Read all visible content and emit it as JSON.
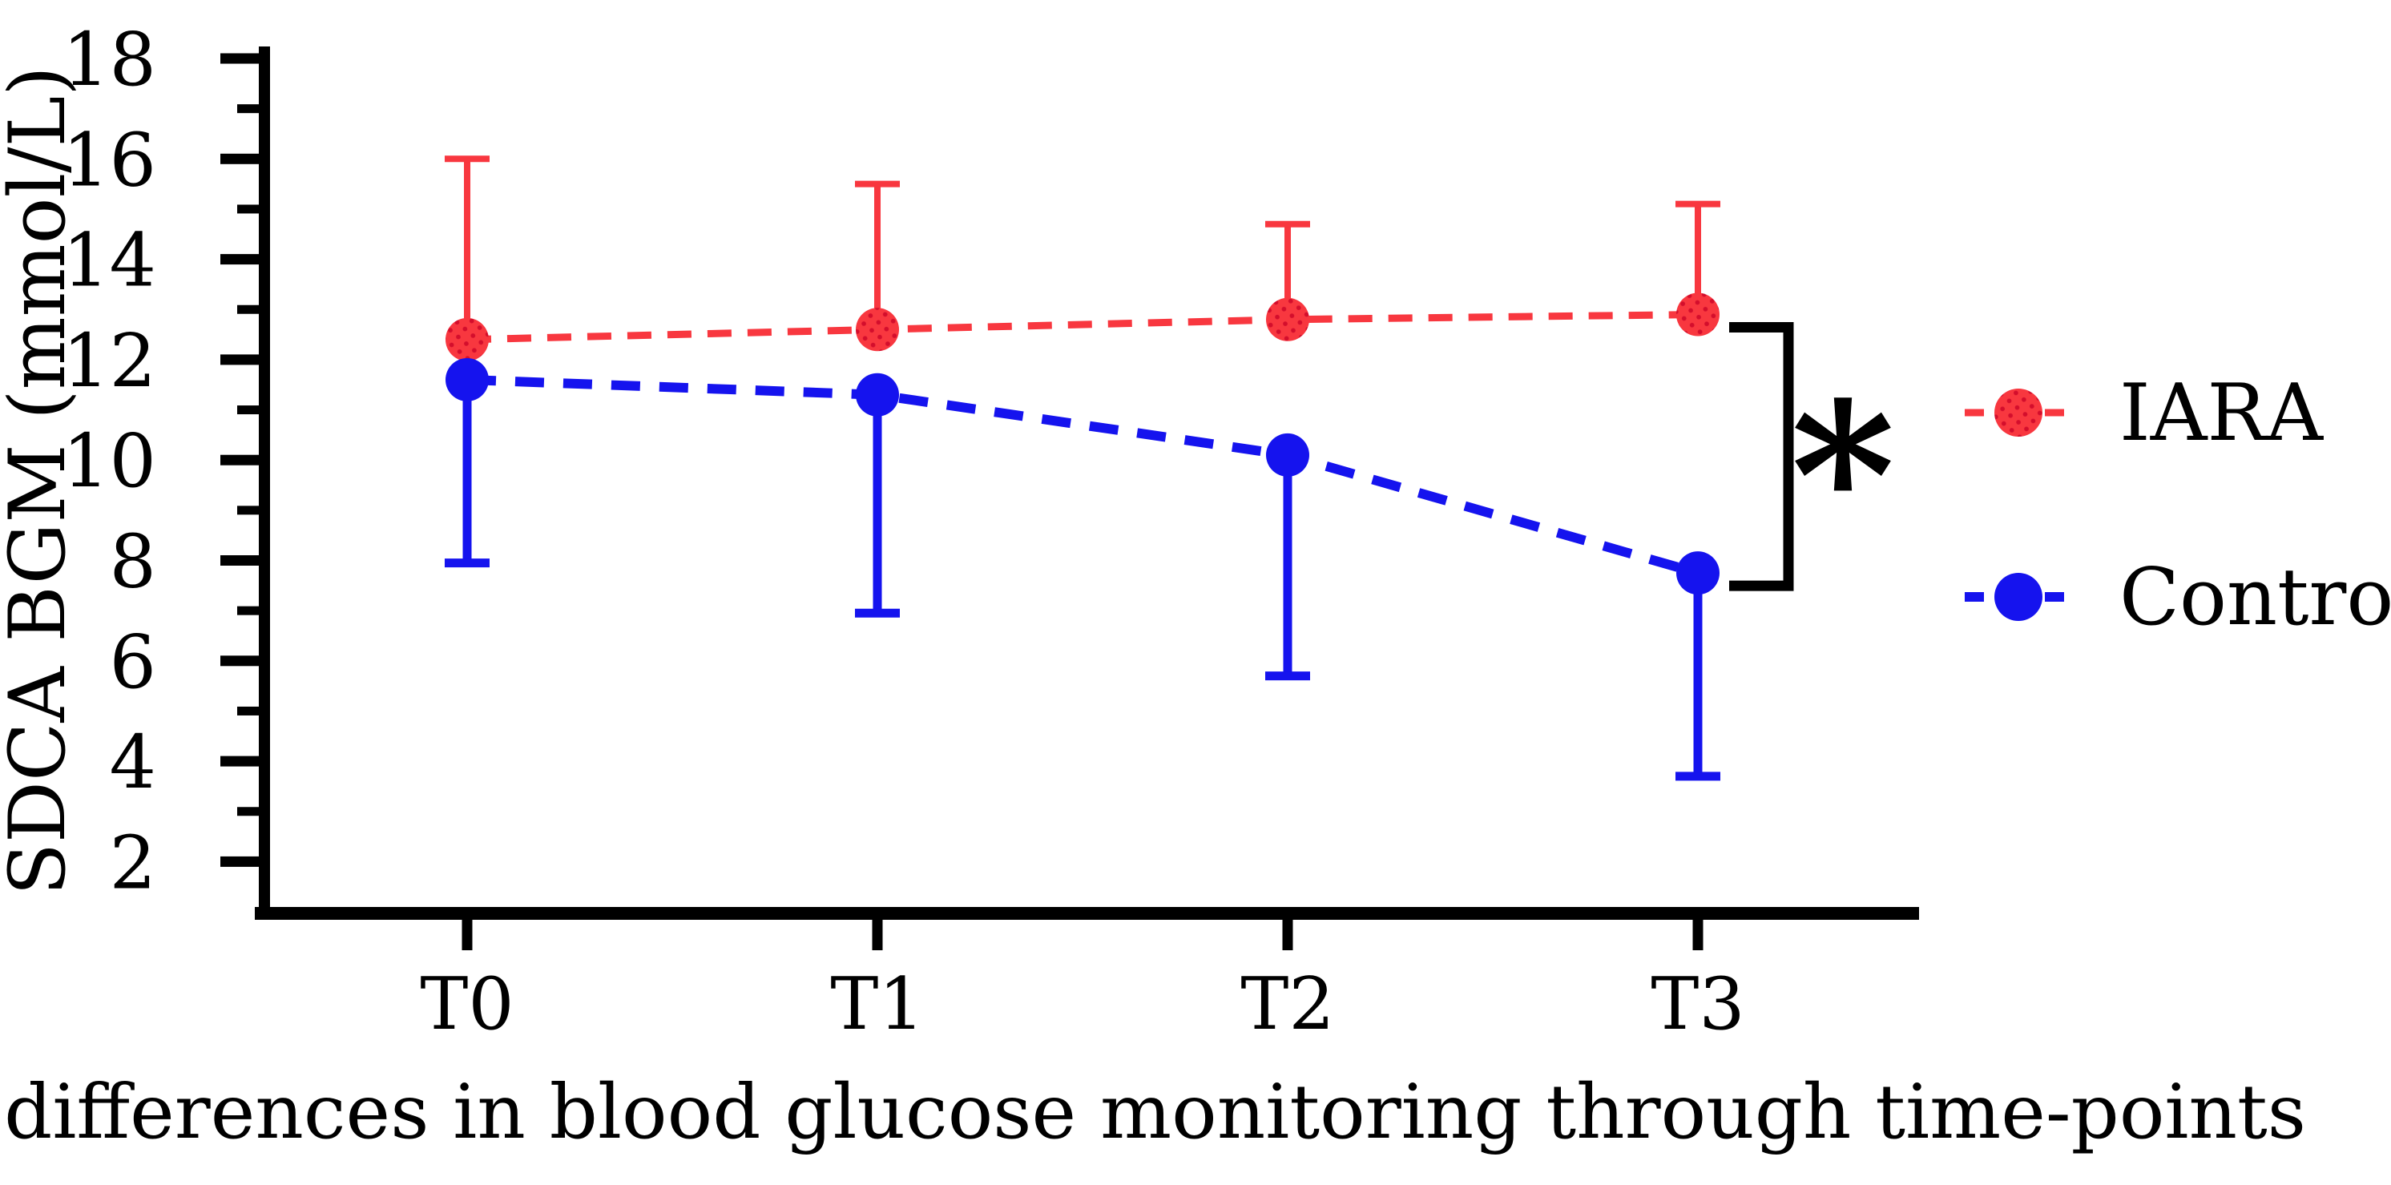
{
  "figure": {
    "caption": "Group differences in blood glucose monitoring through time-points"
  },
  "chart_data": {
    "type": "line",
    "title": "",
    "xlabel": "",
    "ylabel": "SDCA BGM (mmol/L)",
    "x_categories": [
      "T0",
      "T1",
      "T2",
      "T3"
    ],
    "y_axis": {
      "min": 2,
      "max": 18,
      "major_ticks": [
        18,
        16,
        14,
        12,
        10,
        8,
        6,
        4,
        2
      ],
      "minor_ticks": [
        17,
        15,
        13,
        11,
        9,
        7,
        5,
        3
      ]
    },
    "grid": false,
    "legend_position": "right",
    "series": [
      {
        "name": "IARA",
        "color": "#F8373F",
        "stipple_color": "#D40E2C",
        "marker": "circle-stippled",
        "line_style": "dashed",
        "values": [
          12.4,
          12.6,
          12.8,
          12.9
        ],
        "error_bars": {
          "direction": "up",
          "cap_values": [
            16.0,
            15.5,
            14.7,
            15.1
          ]
        }
      },
      {
        "name": "Control",
        "color": "#1513EE",
        "stipple_color": "#1513EE",
        "marker": "circle",
        "line_style": "dashed",
        "values": [
          11.6,
          11.3,
          10.1,
          7.75
        ],
        "error_bars": {
          "direction": "down",
          "cap_values": [
            7.95,
            6.95,
            5.7,
            3.7
          ]
        }
      }
    ],
    "significance": {
      "symbol": "*",
      "at_category": "T3",
      "between_series": [
        "IARA",
        "Control"
      ]
    }
  }
}
